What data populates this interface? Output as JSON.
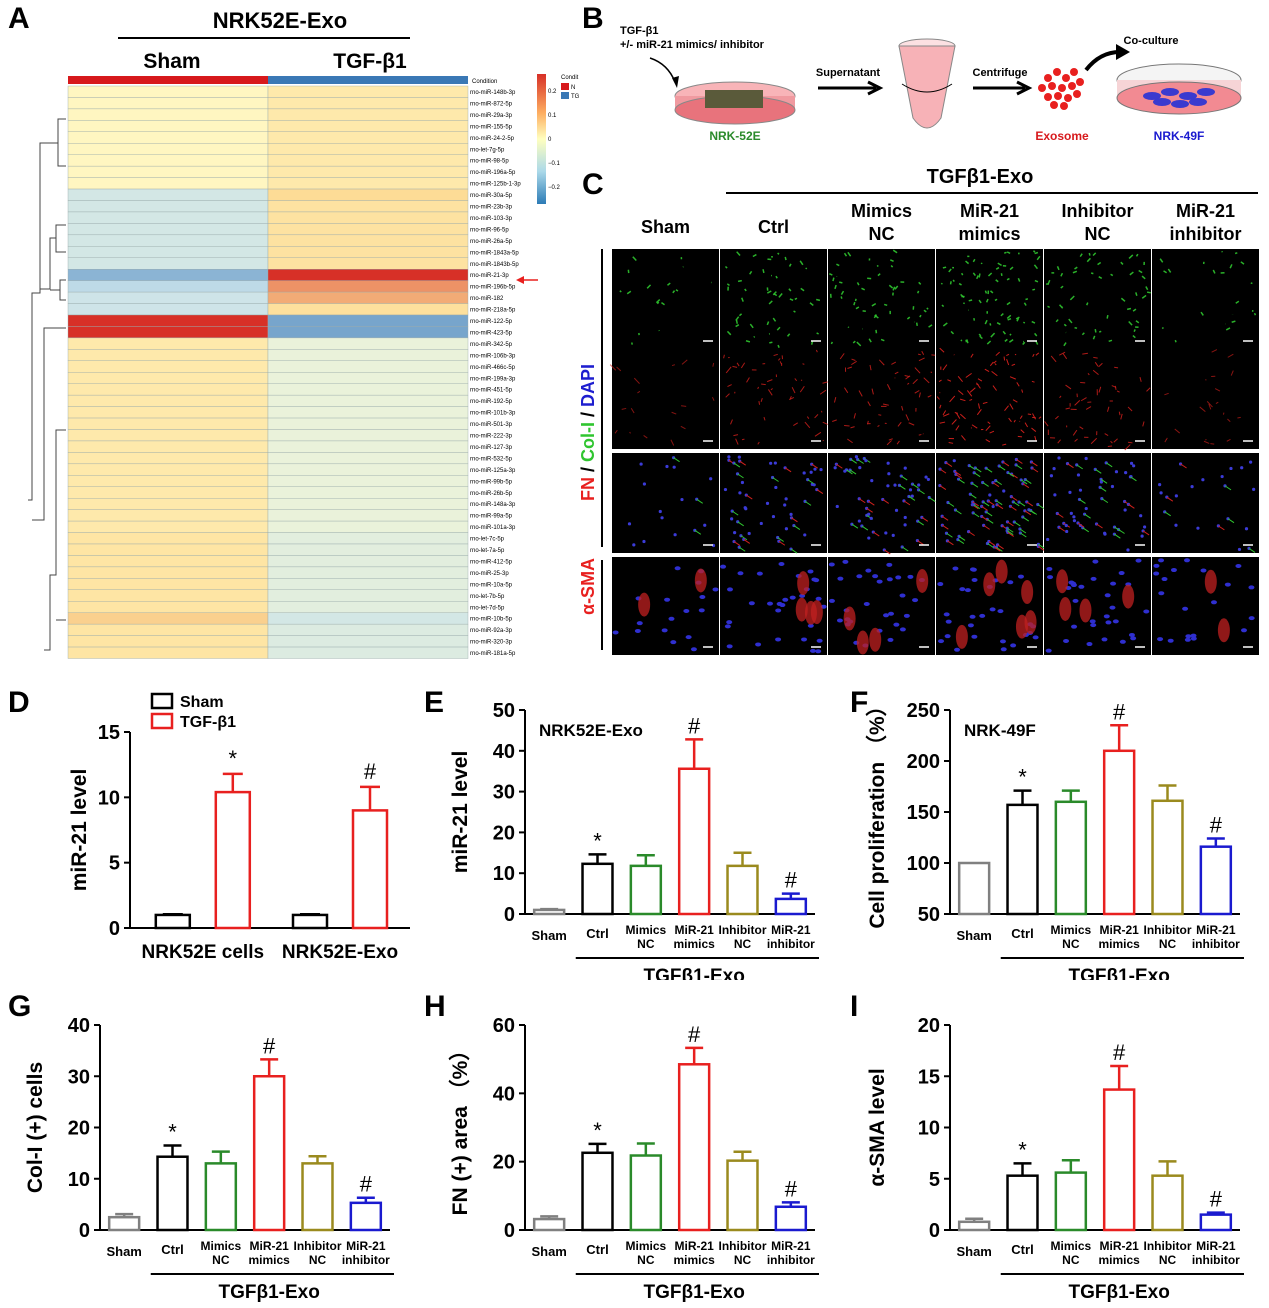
{
  "panels": {
    "A": "A",
    "B": "B",
    "C": "C",
    "D": "D",
    "E": "E",
    "F": "F",
    "G": "G",
    "H": "H",
    "I": "I"
  },
  "heatmap": {
    "title": "NRK52E-Exo",
    "groups": [
      "Sham",
      "TGF-β1"
    ],
    "condition_label": "Condition",
    "legend_title": "Condit",
    "legend_items": [
      {
        "code": "N",
        "color": "#d7191c"
      },
      {
        "code": "TG",
        "color": "#3a78b5"
      }
    ],
    "scale_ticks": [
      "0.2",
      "0.1",
      "0",
      "−0.1",
      "−0.2"
    ],
    "mirnas": [
      "rno-miR-148b-3p",
      "rno-miR-872-5p",
      "rno-miR-29a-3p",
      "rno-miR-155-5p",
      "rno-miR-24-2-5p",
      "rno-let-7g-5p",
      "rno-miR-98-5p",
      "rno-miR-196a-5p",
      "rno-miR-125b-1-3p",
      "rno-miR-30a-5p",
      "rno-miR-23b-3p",
      "rno-miR-103-3p",
      "rno-miR-96-5p",
      "rno-miR-26a-5p",
      "rno-miR-1843a-5p",
      "rno-miR-1843b-5p",
      "rno-miR-21-3p",
      "rno-miR-196b-5p",
      "rno-miR-182",
      "rno-miR-218a-5p",
      "rno-miR-122-5p",
      "rno-miR-423-5p",
      "rno-miR-342-5p",
      "rno-miR-106b-3p",
      "rno-miR-466c-5p",
      "rno-miR-199a-3p",
      "rno-miR-451-5p",
      "rno-miR-192-5p",
      "rno-miR-101b-3p",
      "rno-miR-501-3p",
      "rno-miR-222-3p",
      "rno-miR-127-3p",
      "rno-miR-532-5p",
      "rno-miR-125a-3p",
      "rno-miR-99b-5p",
      "rno-miR-26b-5p",
      "rno-miR-148a-3p",
      "rno-miR-99a-5p",
      "rno-miR-101a-3p",
      "rno-let-7c-5p",
      "rno-let-7a-5p",
      "rno-miR-412-5p",
      "rno-miR-25-3p",
      "rno-miR-10a-5p",
      "rno-let-7b-5p",
      "rno-let-7d-5p",
      "rno-miR-10b-5p",
      "rno-miR-92a-3p",
      "rno-miR-320-3p",
      "rno-miR-181a-5p"
    ],
    "sham_values": [
      0.02,
      0.02,
      0.02,
      0.02,
      0.02,
      0.02,
      0.02,
      0.02,
      0.02,
      -0.1,
      -0.1,
      -0.1,
      -0.1,
      -0.1,
      -0.1,
      -0.1,
      -0.2,
      -0.15,
      -0.12,
      -0.12,
      0.28,
      0.28,
      0.08,
      0.08,
      0.08,
      0.08,
      0.08,
      0.08,
      0.08,
      0.08,
      0.08,
      0.08,
      0.08,
      0.08,
      0.08,
      0.08,
      0.08,
      0.08,
      0.08,
      0.1,
      0.1,
      0.1,
      0.1,
      0.1,
      0.1,
      0.1,
      0.15,
      0.1,
      0.1,
      0.1
    ],
    "tgf_values": [
      0.08,
      0.08,
      0.08,
      0.08,
      0.08,
      0.08,
      0.08,
      0.08,
      0.08,
      0.14,
      0.11,
      0.11,
      0.11,
      0.11,
      0.11,
      0.11,
      0.28,
      0.2,
      0.18,
      0.12,
      -0.22,
      -0.22,
      -0.02,
      -0.02,
      -0.02,
      -0.02,
      -0.02,
      -0.02,
      -0.02,
      -0.02,
      -0.02,
      -0.02,
      -0.02,
      -0.02,
      -0.02,
      -0.02,
      -0.02,
      -0.02,
      -0.02,
      -0.05,
      -0.05,
      -0.05,
      -0.05,
      -0.05,
      -0.05,
      -0.05,
      -0.1,
      -0.07,
      -0.07,
      -0.07
    ]
  },
  "schematic": {
    "treatment_line1": "TGF-β1",
    "treatment_line2": "+/- miR-21 mimics/ inhibitor",
    "cell1": "NRK-52E",
    "step1": "Supernatant",
    "step2": "Centrifuge",
    "step3": "Co-culture",
    "exosome": "Exosome",
    "cell2": "NRK-49F"
  },
  "micrographs": {
    "group_header": "TGFβ1-Exo",
    "columns": [
      [
        "Sham",
        ""
      ],
      [
        "Ctrl",
        ""
      ],
      [
        "Mimics",
        "NC"
      ],
      [
        "MiR-21",
        "mimics"
      ],
      [
        "Inhibitor",
        "NC"
      ],
      [
        "MiR-21",
        "inhibitor"
      ]
    ],
    "stain_fn": "FN",
    "stain_sep1": " / ",
    "stain_col": "Col-I",
    "stain_sep2": " / ",
    "stain_dapi": "DAPI",
    "stain_sma": "α-SMA",
    "colors": {
      "fn": "#e8201f",
      "col": "#2fc52f",
      "dapi": "#1e1ecf",
      "sma": "#e8201f"
    }
  },
  "chart_data": [
    {
      "id": "D",
      "type": "bar",
      "ylabel": "miR-21 level",
      "ylim": [
        0,
        15
      ],
      "yticks": [
        "0",
        "5",
        "10",
        "15"
      ],
      "categories": [
        "NRK52E cells",
        "NRK52E-Exo"
      ],
      "legend": [
        {
          "name": "Sham",
          "color": "#000000"
        },
        {
          "name": "TGF-β1",
          "color": "#e8201f"
        }
      ],
      "series": [
        {
          "name": "Sham",
          "values": [
            1.0,
            1.0
          ],
          "errors": [
            0.05,
            0.05
          ]
        },
        {
          "name": "TGF-β1",
          "values": [
            10.4,
            9.0
          ],
          "errors": [
            1.4,
            1.8
          ]
        }
      ],
      "annotations": [
        "*",
        "#"
      ]
    },
    {
      "id": "E",
      "type": "bar",
      "ylabel": "miR-21 level",
      "ylim": [
        0,
        50
      ],
      "yticks": [
        "0",
        "10",
        "20",
        "30",
        "40",
        "50"
      ],
      "inner_label": "NRK52E-Exo",
      "group_label": "TGFβ1-Exo",
      "categories": [
        [
          "Sham",
          ""
        ],
        [
          "Ctrl",
          ""
        ],
        [
          "Mimics",
          "NC"
        ],
        [
          "MiR-21",
          "mimics"
        ],
        [
          "Inhibitor",
          "NC"
        ],
        [
          "MiR-21",
          "inhibitor"
        ]
      ],
      "values": [
        1.0,
        12.3,
        11.8,
        35.6,
        11.8,
        3.7
      ],
      "errors": [
        0.2,
        2.3,
        2.6,
        7.2,
        3.2,
        1.3
      ],
      "annotations": [
        "",
        "*",
        "",
        "#",
        "",
        "#"
      ]
    },
    {
      "id": "F",
      "type": "bar",
      "ylabel": "Cell proliferation （%）",
      "ylim": [
        50,
        250
      ],
      "yticks": [
        "50",
        "100",
        "150",
        "200",
        "250"
      ],
      "inner_label": "NRK-49F",
      "group_label": "TGFβ1-Exo",
      "categories": [
        [
          "Sham",
          ""
        ],
        [
          "Ctrl",
          ""
        ],
        [
          "Mimics",
          "NC"
        ],
        [
          "MiR-21",
          "mimics"
        ],
        [
          "Inhibitor",
          "NC"
        ],
        [
          "MiR-21",
          "inhibitor"
        ]
      ],
      "values": [
        100,
        157,
        160,
        210,
        161,
        116
      ],
      "errors": [
        0,
        14,
        11,
        25,
        15,
        8
      ],
      "annotations": [
        "",
        "*",
        "",
        "#",
        "",
        "#"
      ]
    },
    {
      "id": "G",
      "type": "bar",
      "ylabel": "Col-I (+) cells",
      "ylim": [
        0,
        40
      ],
      "yticks": [
        "0",
        "10",
        "20",
        "30",
        "40"
      ],
      "group_label": "TGFβ1-Exo",
      "categories": [
        [
          "Sham",
          ""
        ],
        [
          "Ctrl",
          ""
        ],
        [
          "Mimics",
          "NC"
        ],
        [
          "MiR-21",
          "mimics"
        ],
        [
          "Inhibitor",
          "NC"
        ],
        [
          "MiR-21",
          "inhibitor"
        ]
      ],
      "values": [
        2.5,
        14.3,
        13.0,
        30.0,
        13.0,
        5.3
      ],
      "errors": [
        0.6,
        2.2,
        2.3,
        3.3,
        1.4,
        1.0
      ],
      "annotations": [
        "",
        "*",
        "",
        "#",
        "",
        "#"
      ]
    },
    {
      "id": "H",
      "type": "bar",
      "ylabel": "FN (+) area （%）",
      "ylim": [
        0,
        60
      ],
      "yticks": [
        "0",
        "20",
        "40",
        "60"
      ],
      "group_label": "TGFβ1-Exo",
      "categories": [
        [
          "Sham",
          ""
        ],
        [
          "Ctrl",
          ""
        ],
        [
          "Mimics",
          "NC"
        ],
        [
          "MiR-21",
          "mimics"
        ],
        [
          "Inhibitor",
          "NC"
        ],
        [
          "MiR-21",
          "inhibitor"
        ]
      ],
      "values": [
        3.2,
        22.6,
        21.8,
        48.5,
        20.3,
        6.8
      ],
      "errors": [
        0.8,
        2.6,
        3.5,
        4.8,
        2.6,
        1.3
      ],
      "annotations": [
        "",
        "*",
        "",
        "#",
        "",
        "#"
      ]
    },
    {
      "id": "I",
      "type": "bar",
      "ylabel": "α-SMA level",
      "ylim": [
        0,
        20
      ],
      "yticks": [
        "0",
        "5",
        "10",
        "15",
        "20"
      ],
      "group_label": "TGFβ1-Exo",
      "categories": [
        [
          "Sham",
          ""
        ],
        [
          "Ctrl",
          ""
        ],
        [
          "Mimics",
          "NC"
        ],
        [
          "MiR-21",
          "mimics"
        ],
        [
          "Inhibitor",
          "NC"
        ],
        [
          "MiR-21",
          "inhibitor"
        ]
      ],
      "values": [
        0.8,
        5.3,
        5.6,
        13.7,
        5.3,
        1.5
      ],
      "errors": [
        0.3,
        1.2,
        1.2,
        2.3,
        1.4,
        0.2
      ],
      "annotations": [
        "",
        "*",
        "",
        "#",
        "",
        "#"
      ]
    }
  ],
  "bar_colors": [
    "#808080",
    "#000000",
    "#2a8a2a",
    "#e8201f",
    "#9a8a1e",
    "#1a1acf"
  ]
}
